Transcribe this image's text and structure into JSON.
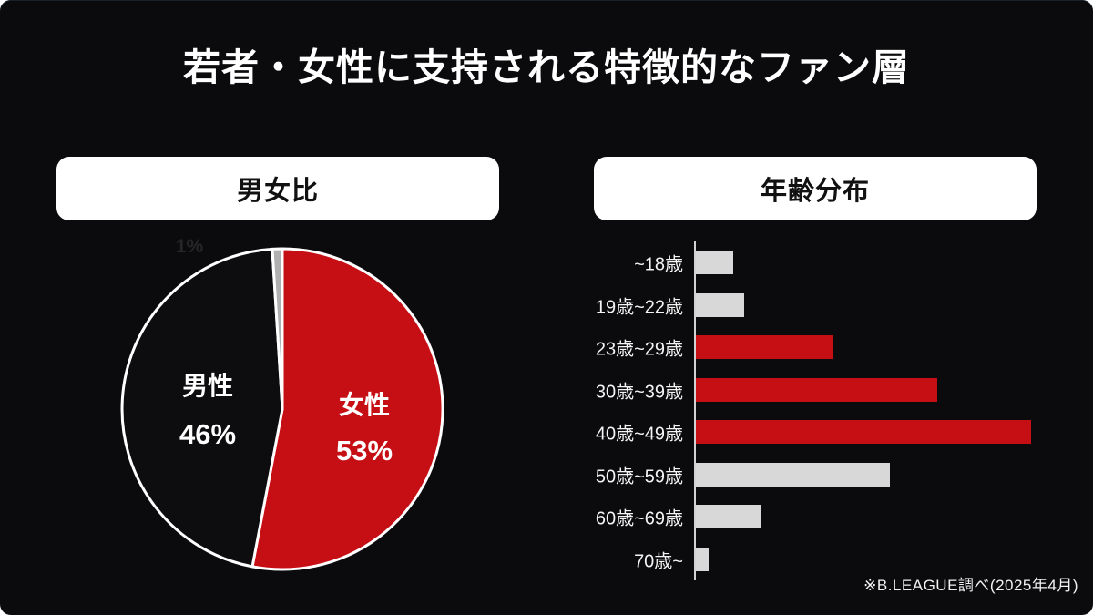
{
  "page": {
    "title": "若者・女性に支持される特徴的なファン層",
    "footnote": "※B.LEAGUE調べ(2025年4月)",
    "background_color": "#0b0b0d",
    "accent_red": "#c60e15",
    "bar_gray": "#d8d8d8",
    "pie_other_gray": "#b0b0b0"
  },
  "gender_panel": {
    "header": "男女比"
  },
  "age_panel": {
    "header": "年齢分布"
  },
  "chart_data": [
    {
      "type": "pie",
      "title": "男女比",
      "slices": [
        {
          "label": "女性",
          "value": 53,
          "display": "53%",
          "color": "#c60e15"
        },
        {
          "label": "男性",
          "value": 46,
          "display": "46%",
          "color": "#0d0d0f"
        },
        {
          "label": "",
          "value": 1,
          "display": "1%",
          "color": "#b0b0b0"
        }
      ],
      "start_angle_deg": 0,
      "direction": "clockwise",
      "stroke_color": "#ffffff",
      "stroke_width": 3,
      "legend_position": "none",
      "labels_inside": true
    },
    {
      "type": "bar",
      "title": "年齢分布",
      "orientation": "horizontal",
      "categories": [
        "~18歳",
        "19歳~22歳",
        "23歳~29歳",
        "30歳~39歳",
        "40歳~49歳",
        "50歳~59歳",
        "60歳~69歳",
        "70歳~"
      ],
      "values": [
        3.5,
        4.5,
        12.8,
        22.5,
        31.3,
        18.1,
        6.0,
        1.2
      ],
      "bar_colors": [
        "#d8d8d8",
        "#d8d8d8",
        "#c60e15",
        "#c60e15",
        "#c60e15",
        "#d8d8d8",
        "#d8d8d8",
        "#d8d8d8"
      ],
      "xlabel": "",
      "ylabel": "",
      "xlim": [
        0,
        32
      ],
      "value_axis_labeled": false,
      "values_unit": "percent (estimated from bar lengths; axis unlabeled)",
      "grid": false,
      "legend_position": "none"
    }
  ]
}
